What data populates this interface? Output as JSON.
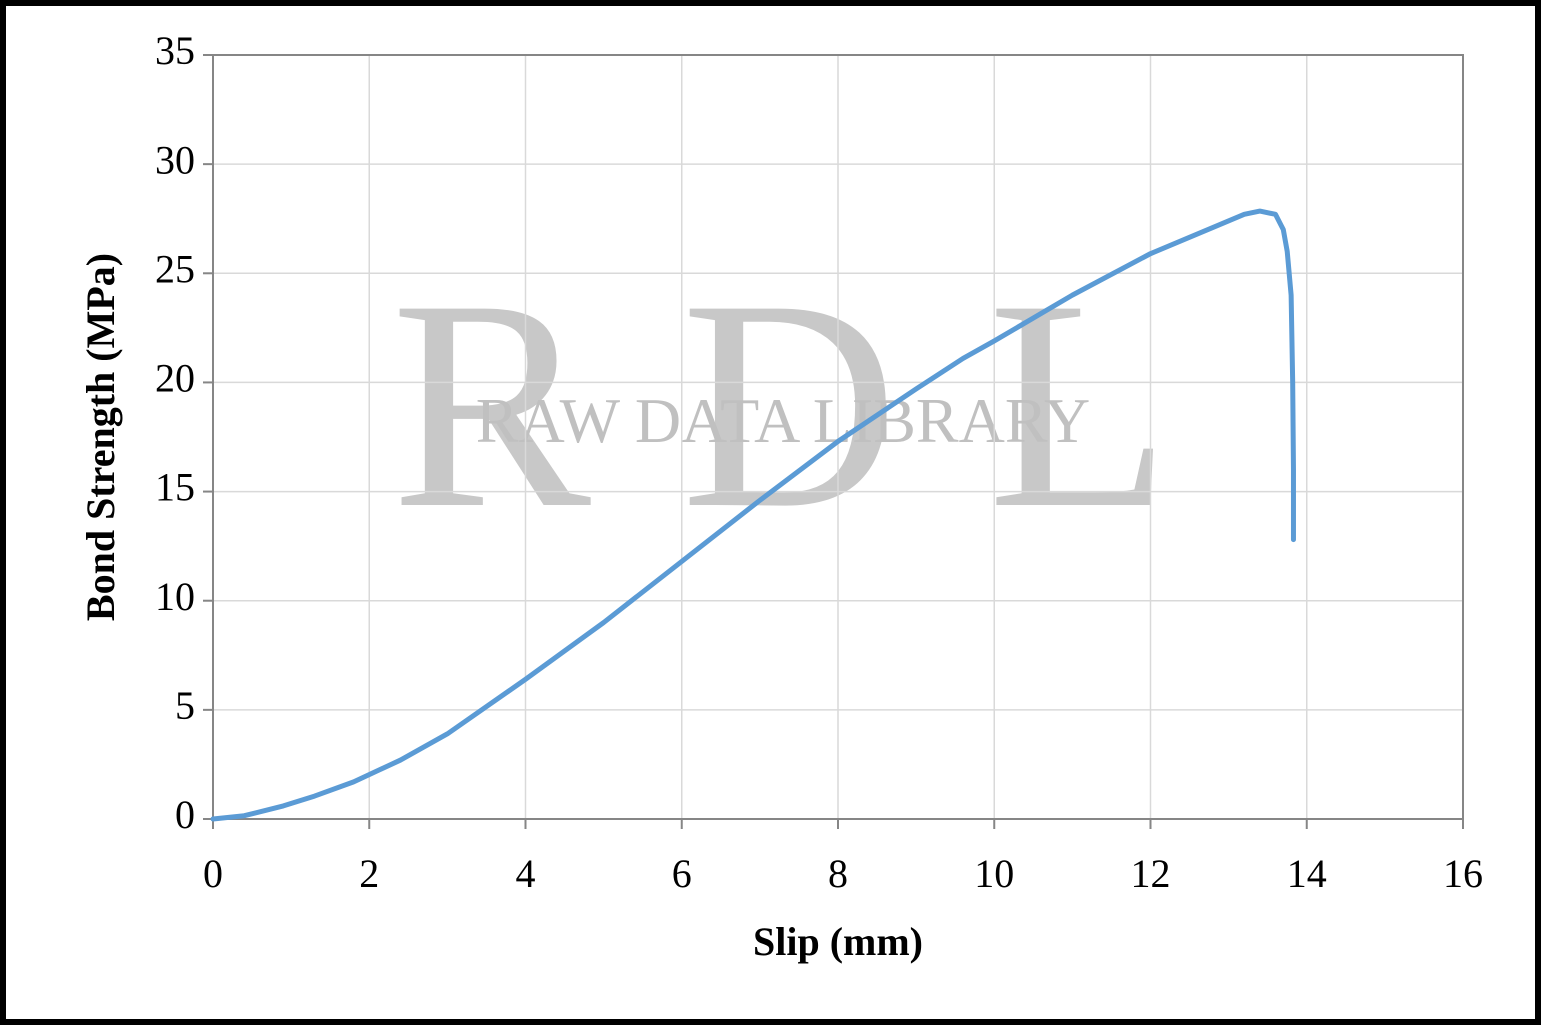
{
  "chart_data": {
    "type": "line",
    "x_label": "Slip (mm)",
    "y_label": "Bond Strength (MPa)",
    "watermark": "RDL",
    "watermark_subtitle": "RAW DATA LIBRARY",
    "xlim": [
      0,
      16
    ],
    "xticks": [
      0,
      2,
      4,
      6,
      8,
      10,
      12,
      14,
      16
    ],
    "ylim": [
      0,
      35
    ],
    "yticks": [
      0,
      5,
      10,
      15,
      20,
      25,
      30,
      35
    ],
    "grid": true,
    "series": [
      {
        "color": "#5b9bd5",
        "x": [
          0,
          0.4,
          0.9,
          1.3,
          1.8,
          2.4,
          3,
          4,
          5,
          6,
          7,
          8,
          9,
          9.6,
          10,
          11,
          12,
          12.8,
          13.2,
          13.4,
          13.6,
          13.7,
          13.75,
          13.8,
          13.82,
          13.83,
          13.83
        ],
        "values": [
          0,
          0.15,
          0.6,
          1.05,
          1.7,
          2.7,
          3.9,
          6.4,
          9.0,
          11.8,
          14.6,
          17.3,
          19.7,
          21.1,
          21.9,
          24.0,
          25.9,
          27.1,
          27.7,
          27.85,
          27.7,
          27.0,
          26.0,
          24,
          20,
          16,
          12.8
        ]
      }
    ]
  }
}
